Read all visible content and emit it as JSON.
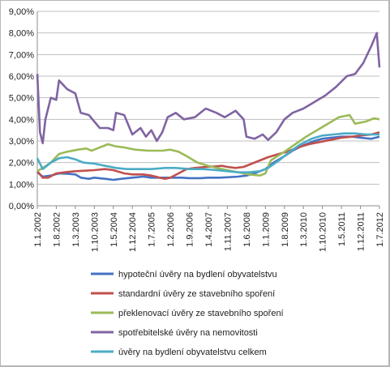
{
  "chart_data": {
    "type": "line",
    "title": "",
    "xlabel": "",
    "ylabel": "",
    "ylim": [
      0,
      9
    ],
    "y_ticks": [
      "0,00%",
      "1,00%",
      "2,00%",
      "3,00%",
      "4,00%",
      "5,00%",
      "6,00%",
      "7,00%",
      "8,00%",
      "9,00%"
    ],
    "x_ticks": [
      "1.1.2002",
      "1.8.2002",
      "1.3.2003",
      "1.10.2003",
      "1.5.2004",
      "1.12.2004",
      "1.7.2005",
      "1.2.2006",
      "1.9.2006",
      "1.4.2007",
      "1.11.2007",
      "1.6.2008",
      "1.1.2009",
      "1.8.2009",
      "1.3.2010",
      "1.10.2010",
      "1.5.2011",
      "1.12.2011",
      "1.7.2012"
    ],
    "grid": true,
    "legend_position": "bottom",
    "series": [
      {
        "name": "hypoteční úvěry na bydlení obyvatelstvu",
        "color": "#4472C4",
        "points": [
          [
            "1.1.2002",
            1.55
          ],
          [
            "1.3.2002",
            1.35
          ],
          [
            "1.6.2002",
            1.4
          ],
          [
            "1.9.2002",
            1.5
          ],
          [
            "1.12.2002",
            1.48
          ],
          [
            "1.3.2003",
            1.45
          ],
          [
            "1.5.2003",
            1.3
          ],
          [
            "1.8.2003",
            1.25
          ],
          [
            "1.10.2003",
            1.3
          ],
          [
            "1.2.2004",
            1.25
          ],
          [
            "1.5.2004",
            1.2
          ],
          [
            "1.8.2004",
            1.25
          ],
          [
            "1.12.2004",
            1.3
          ],
          [
            "1.4.2005",
            1.35
          ],
          [
            "1.7.2005",
            1.3
          ],
          [
            "1.10.2005",
            1.3
          ],
          [
            "1.2.2006",
            1.3
          ],
          [
            "1.6.2006",
            1.3
          ],
          [
            "1.9.2006",
            1.28
          ],
          [
            "1.1.2007",
            1.28
          ],
          [
            "1.4.2007",
            1.3
          ],
          [
            "1.8.2007",
            1.3
          ],
          [
            "1.11.2007",
            1.32
          ],
          [
            "1.3.2008",
            1.35
          ],
          [
            "1.6.2008",
            1.4
          ],
          [
            "1.9.2008",
            1.5
          ],
          [
            "1.1.2009",
            1.7
          ],
          [
            "1.4.2009",
            2.0
          ],
          [
            "1.8.2009",
            2.3
          ],
          [
            "1.11.2009",
            2.55
          ],
          [
            "1.3.2010",
            2.8
          ],
          [
            "1.7.2010",
            3.0
          ],
          [
            "1.10.2010",
            3.1
          ],
          [
            "1.1.2011",
            3.15
          ],
          [
            "1.5.2011",
            3.2
          ],
          [
            "1.9.2011",
            3.2
          ],
          [
            "1.12.2011",
            3.15
          ],
          [
            "1.4.2012",
            3.1
          ],
          [
            "1.7.2012",
            3.2
          ]
        ]
      },
      {
        "name": "standardní úvěry ze stavebního spoření",
        "color": "#C0504D",
        "points": [
          [
            "1.1.2002",
            1.6
          ],
          [
            "1.3.2002",
            1.3
          ],
          [
            "1.5.2002",
            1.3
          ],
          [
            "1.8.2002",
            1.5
          ],
          [
            "1.11.2002",
            1.55
          ],
          [
            "1.3.2003",
            1.6
          ],
          [
            "1.6.2003",
            1.62
          ],
          [
            "1.10.2003",
            1.65
          ],
          [
            "1.2.2004",
            1.7
          ],
          [
            "1.5.2004",
            1.65
          ],
          [
            "1.9.2004",
            1.5
          ],
          [
            "1.12.2004",
            1.45
          ],
          [
            "1.4.2005",
            1.45
          ],
          [
            "1.7.2005",
            1.4
          ],
          [
            "1.10.2005",
            1.3
          ],
          [
            "1.12.2005",
            1.25
          ],
          [
            "1.2.2006",
            1.3
          ],
          [
            "1.5.2006",
            1.5
          ],
          [
            "1.8.2006",
            1.7
          ],
          [
            "1.11.2006",
            1.75
          ],
          [
            "1.3.2007",
            1.8
          ],
          [
            "1.6.2007",
            1.82
          ],
          [
            "1.9.2007",
            1.85
          ],
          [
            "1.11.2007",
            1.8
          ],
          [
            "1.2.2008",
            1.75
          ],
          [
            "1.5.2008",
            1.8
          ],
          [
            "1.8.2008",
            1.95
          ],
          [
            "1.11.2008",
            2.1
          ],
          [
            "1.2.2009",
            2.25
          ],
          [
            "1.6.2009",
            2.4
          ],
          [
            "1.9.2009",
            2.5
          ],
          [
            "1.1.2010",
            2.7
          ],
          [
            "1.5.2010",
            2.85
          ],
          [
            "1.9.2010",
            2.95
          ],
          [
            "1.1.2011",
            3.05
          ],
          [
            "1.5.2011",
            3.15
          ],
          [
            "1.9.2011",
            3.2
          ],
          [
            "1.12.2011",
            3.25
          ],
          [
            "1.4.2012",
            3.3
          ],
          [
            "1.7.2012",
            3.4
          ]
        ]
      },
      {
        "name": "překlenovací úvěry ze stavebního spoření",
        "color": "#9BBB59",
        "points": [
          [
            "1.1.2002",
            1.6
          ],
          [
            "1.3.2002",
            1.75
          ],
          [
            "1.6.2002",
            2.0
          ],
          [
            "1.9.2002",
            2.4
          ],
          [
            "1.12.2002",
            2.5
          ],
          [
            "1.4.2003",
            2.6
          ],
          [
            "1.7.2003",
            2.65
          ],
          [
            "1.9.2003",
            2.55
          ],
          [
            "1.12.2003",
            2.7
          ],
          [
            "1.3.2004",
            2.85
          ],
          [
            "1.6.2004",
            2.75
          ],
          [
            "1.9.2004",
            2.7
          ],
          [
            "1.1.2005",
            2.6
          ],
          [
            "1.6.2005",
            2.55
          ],
          [
            "1.11.2005",
            2.55
          ],
          [
            "1.2.2006",
            2.6
          ],
          [
            "1.5.2006",
            2.5
          ],
          [
            "1.8.2006",
            2.3
          ],
          [
            "1.12.2006",
            2.0
          ],
          [
            "1.4.2007",
            1.85
          ],
          [
            "1.7.2007",
            1.75
          ],
          [
            "1.11.2007",
            1.65
          ],
          [
            "1.3.2008",
            1.55
          ],
          [
            "1.7.2008",
            1.45
          ],
          [
            "1.11.2008",
            1.4
          ],
          [
            "1.1.2009",
            1.5
          ],
          [
            "1.3.2009",
            2.1
          ],
          [
            "1.8.2009",
            2.5
          ],
          [
            "1.12.2009",
            2.85
          ],
          [
            "1.4.2010",
            3.2
          ],
          [
            "1.8.2010",
            3.5
          ],
          [
            "1.12.2010",
            3.8
          ],
          [
            "1.4.2011",
            4.1
          ],
          [
            "1.8.2011",
            4.2
          ],
          [
            "1.10.2011",
            3.8
          ],
          [
            "1.2.2012",
            3.9
          ],
          [
            "1.5.2012",
            4.05
          ],
          [
            "1.7.2012",
            4.0
          ]
        ]
      },
      {
        "name": "spotřebitelské úvěry na nemovitosti",
        "color": "#8064A2",
        "points": [
          [
            "1.1.2002",
            6.1
          ],
          [
            "1.2.2002",
            3.4
          ],
          [
            "1.3.2002",
            2.9
          ],
          [
            "1.4.2002",
            4.0
          ],
          [
            "1.6.2002",
            5.0
          ],
          [
            "1.8.2002",
            4.9
          ],
          [
            "1.9.2002",
            5.8
          ],
          [
            "1.12.2002",
            5.4
          ],
          [
            "1.3.2003",
            5.2
          ],
          [
            "1.5.2003",
            4.3
          ],
          [
            "1.8.2003",
            4.2
          ],
          [
            "1.10.2003",
            3.9
          ],
          [
            "1.12.2003",
            3.6
          ],
          [
            "1.3.2004",
            3.6
          ],
          [
            "1.5.2004",
            3.5
          ],
          [
            "1.6.2004",
            4.3
          ],
          [
            "1.9.2004",
            4.2
          ],
          [
            "1.12.2004",
            3.3
          ],
          [
            "1.3.2005",
            3.6
          ],
          [
            "1.5.2005",
            3.2
          ],
          [
            "1.7.2005",
            3.5
          ],
          [
            "1.9.2005",
            3.0
          ],
          [
            "1.11.2005",
            3.4
          ],
          [
            "1.1.2006",
            4.1
          ],
          [
            "1.4.2006",
            4.3
          ],
          [
            "1.7.2006",
            4.0
          ],
          [
            "1.11.2006",
            4.1
          ],
          [
            "1.3.2007",
            4.5
          ],
          [
            "1.7.2007",
            4.3
          ],
          [
            "1.10.2007",
            4.1
          ],
          [
            "1.2.2008",
            4.4
          ],
          [
            "1.5.2008",
            4.0
          ],
          [
            "1.6.2008",
            3.2
          ],
          [
            "1.9.2008",
            3.1
          ],
          [
            "1.12.2008",
            3.3
          ],
          [
            "1.2.2009",
            3.05
          ],
          [
            "1.5.2009",
            3.4
          ],
          [
            "1.8.2009",
            4.0
          ],
          [
            "1.11.2009",
            4.3
          ],
          [
            "1.3.2010",
            4.5
          ],
          [
            "1.7.2010",
            4.8
          ],
          [
            "1.11.2010",
            5.1
          ],
          [
            "1.3.2011",
            5.5
          ],
          [
            "1.7.2011",
            6.0
          ],
          [
            "1.10.2011",
            6.1
          ],
          [
            "1.1.2012",
            6.6
          ],
          [
            "1.4.2012",
            7.4
          ],
          [
            "1.6.2012",
            8.0
          ],
          [
            "1.7.2012",
            6.4
          ]
        ]
      },
      {
        "name": "úvěry na bydlení obyvatelstvu celkem",
        "color": "#4BACC6",
        "points": [
          [
            "1.1.2002",
            2.2
          ],
          [
            "1.3.2002",
            1.7
          ],
          [
            "1.6.2002",
            2.0
          ],
          [
            "1.9.2002",
            2.2
          ],
          [
            "1.12.2002",
            2.25
          ],
          [
            "1.3.2003",
            2.15
          ],
          [
            "1.6.2003",
            2.0
          ],
          [
            "1.10.2003",
            1.95
          ],
          [
            "1.2.2004",
            1.85
          ],
          [
            "1.6.2004",
            1.75
          ],
          [
            "1.10.2004",
            1.7
          ],
          [
            "1.2.2005",
            1.7
          ],
          [
            "1.7.2005",
            1.7
          ],
          [
            "1.12.2005",
            1.75
          ],
          [
            "1.4.2006",
            1.75
          ],
          [
            "1.9.2006",
            1.7
          ],
          [
            "1.2.2007",
            1.7
          ],
          [
            "1.7.2007",
            1.65
          ],
          [
            "1.11.2007",
            1.6
          ],
          [
            "1.3.2008",
            1.55
          ],
          [
            "1.7.2008",
            1.55
          ],
          [
            "1.11.2008",
            1.6
          ],
          [
            "1.2.2009",
            1.75
          ],
          [
            "1.6.2009",
            2.1
          ],
          [
            "1.10.2009",
            2.5
          ],
          [
            "1.2.2010",
            2.85
          ],
          [
            "1.6.2010",
            3.1
          ],
          [
            "1.10.2010",
            3.25
          ],
          [
            "1.2.2011",
            3.3
          ],
          [
            "1.6.2011",
            3.35
          ],
          [
            "1.10.2011",
            3.35
          ],
          [
            "1.2.2012",
            3.3
          ],
          [
            "1.5.2012",
            3.3
          ],
          [
            "1.7.2012",
            3.3
          ]
        ]
      }
    ]
  }
}
